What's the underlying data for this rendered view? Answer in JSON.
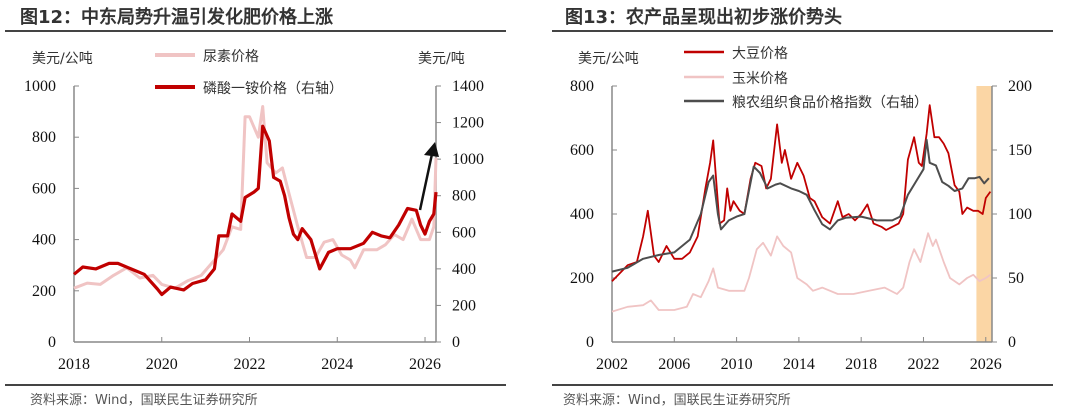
{
  "chart_data": [
    {
      "type": "line",
      "title": "图12：中东局势升温引发化肥价格上涨",
      "source": "资料来源：Wind，国联民生证券研究所",
      "ylabel": "美元/公吨",
      "ylabel_right": "美元/吨",
      "xlim": [
        2018,
        2026.25
      ],
      "ylim": [
        0,
        1000
      ],
      "ylim_right": [
        0,
        1400
      ],
      "xticks": [
        "2018",
        "2020",
        "2022",
        "2024",
        "2026"
      ],
      "yticks": [
        "0",
        "200",
        "400",
        "600",
        "800",
        "1000"
      ],
      "yticks_right": [
        "0",
        "200",
        "400",
        "600",
        "800",
        "1000",
        "1200",
        "1400"
      ],
      "grid": false,
      "legend": "top-center",
      "annotation": "upward-arrow",
      "series": [
        {
          "name": "尿素价格",
          "axis": "left",
          "color": "#f0c4c4",
          "points": [
            [
              2018.0,
              210
            ],
            [
              2018.3,
              230
            ],
            [
              2018.6,
              225
            ],
            [
              2018.9,
              260
            ],
            [
              2019.2,
              290
            ],
            [
              2019.5,
              250
            ],
            [
              2019.8,
              260
            ],
            [
              2020.0,
              225
            ],
            [
              2020.3,
              210
            ],
            [
              2020.6,
              240
            ],
            [
              2020.9,
              260
            ],
            [
              2021.2,
              320
            ],
            [
              2021.4,
              360
            ],
            [
              2021.6,
              450
            ],
            [
              2021.8,
              440
            ],
            [
              2021.9,
              880
            ],
            [
              2022.0,
              880
            ],
            [
              2022.2,
              800
            ],
            [
              2022.3,
              920
            ],
            [
              2022.4,
              700
            ],
            [
              2022.6,
              660
            ],
            [
              2022.75,
              680
            ],
            [
              2022.9,
              580
            ],
            [
              2023.1,
              450
            ],
            [
              2023.3,
              330
            ],
            [
              2023.5,
              330
            ],
            [
              2023.7,
              390
            ],
            [
              2023.9,
              400
            ],
            [
              2024.1,
              340
            ],
            [
              2024.3,
              320
            ],
            [
              2024.4,
              290
            ],
            [
              2024.6,
              360
            ],
            [
              2024.9,
              360
            ],
            [
              2025.1,
              380
            ],
            [
              2025.3,
              420
            ],
            [
              2025.5,
              400
            ],
            [
              2025.7,
              480
            ],
            [
              2025.9,
              400
            ],
            [
              2026.1,
              400
            ],
            [
              2026.2,
              450
            ],
            [
              2026.25,
              720
            ]
          ]
        },
        {
          "name": "磷酸一铵价格（右轴）",
          "axis": "right",
          "color": "#c00000",
          "points": [
            [
              2018.0,
              370
            ],
            [
              2018.2,
              410
            ],
            [
              2018.5,
              400
            ],
            [
              2018.8,
              430
            ],
            [
              2019.0,
              430
            ],
            [
              2019.3,
              400
            ],
            [
              2019.6,
              370
            ],
            [
              2019.9,
              290
            ],
            [
              2020.0,
              260
            ],
            [
              2020.2,
              300
            ],
            [
              2020.5,
              285
            ],
            [
              2020.7,
              320
            ],
            [
              2021.0,
              340
            ],
            [
              2021.2,
              400
            ],
            [
              2021.3,
              580
            ],
            [
              2021.5,
              580
            ],
            [
              2021.6,
              700
            ],
            [
              2021.8,
              660
            ],
            [
              2021.9,
              790
            ],
            [
              2022.1,
              820
            ],
            [
              2022.2,
              840
            ],
            [
              2022.3,
              1180
            ],
            [
              2022.45,
              1100
            ],
            [
              2022.55,
              900
            ],
            [
              2022.7,
              880
            ],
            [
              2022.8,
              800
            ],
            [
              2022.9,
              680
            ],
            [
              2023.0,
              590
            ],
            [
              2023.1,
              560
            ],
            [
              2023.2,
              620
            ],
            [
              2023.4,
              560
            ],
            [
              2023.6,
              400
            ],
            [
              2023.8,
              490
            ],
            [
              2024.0,
              510
            ],
            [
              2024.3,
              510
            ],
            [
              2024.6,
              540
            ],
            [
              2024.8,
              600
            ],
            [
              2025.0,
              580
            ],
            [
              2025.2,
              570
            ],
            [
              2025.4,
              640
            ],
            [
              2025.6,
              730
            ],
            [
              2025.8,
              720
            ],
            [
              2025.9,
              640
            ],
            [
              2026.0,
              590
            ],
            [
              2026.1,
              660
            ],
            [
              2026.2,
              700
            ],
            [
              2026.25,
              820
            ]
          ]
        }
      ]
    },
    {
      "type": "line",
      "title": "图13：农产品呈现出初步涨价势头",
      "source": "资料来源：Wind，国联民生证券研究所",
      "ylabel": "美元/公吨",
      "xlim": [
        2002,
        2026.4
      ],
      "ylim": [
        0,
        800
      ],
      "ylim_right": [
        0,
        200
      ],
      "xticks": [
        "2002",
        "2006",
        "2010",
        "2014",
        "2018",
        "2022",
        "2026"
      ],
      "yticks": [
        "0",
        "200",
        "400",
        "600",
        "800"
      ],
      "yticks_right": [
        "0",
        "50",
        "100",
        "150",
        "200"
      ],
      "grid": false,
      "legend": "top-center",
      "highlight_range": [
        2025.4,
        2026.4
      ],
      "highlight_color": "#fbd29b",
      "series": [
        {
          "name": "大豆价格",
          "axis": "left",
          "color": "#c00000",
          "points": [
            [
              2002,
              190
            ],
            [
              2003,
              240
            ],
            [
              2003.6,
              250
            ],
            [
              2004.0,
              330
            ],
            [
              2004.3,
              410
            ],
            [
              2004.7,
              270
            ],
            [
              2005,
              250
            ],
            [
              2005.5,
              300
            ],
            [
              2006,
              260
            ],
            [
              2006.5,
              260
            ],
            [
              2007,
              280
            ],
            [
              2007.5,
              330
            ],
            [
              2008,
              480
            ],
            [
              2008.3,
              560
            ],
            [
              2008.5,
              630
            ],
            [
              2008.7,
              500
            ],
            [
              2008.9,
              370
            ],
            [
              2009.2,
              380
            ],
            [
              2009.4,
              480
            ],
            [
              2009.6,
              410
            ],
            [
              2009.8,
              440
            ],
            [
              2010.2,
              410
            ],
            [
              2010.5,
              400
            ],
            [
              2010.9,
              510
            ],
            [
              2011.2,
              560
            ],
            [
              2011.6,
              550
            ],
            [
              2011.9,
              480
            ],
            [
              2012.2,
              510
            ],
            [
              2012.6,
              680
            ],
            [
              2012.9,
              560
            ],
            [
              2013.1,
              600
            ],
            [
              2013.5,
              510
            ],
            [
              2013.9,
              560
            ],
            [
              2014.3,
              520
            ],
            [
              2014.7,
              450
            ],
            [
              2015,
              440
            ],
            [
              2015.5,
              390
            ],
            [
              2016,
              370
            ],
            [
              2016.5,
              440
            ],
            [
              2016.8,
              390
            ],
            [
              2017.2,
              400
            ],
            [
              2017.6,
              380
            ],
            [
              2018,
              400
            ],
            [
              2018.4,
              430
            ],
            [
              2018.8,
              370
            ],
            [
              2019.3,
              360
            ],
            [
              2019.6,
              350
            ],
            [
              2020,
              360
            ],
            [
              2020.4,
              370
            ],
            [
              2020.7,
              400
            ],
            [
              2021.0,
              570
            ],
            [
              2021.4,
              640
            ],
            [
              2021.7,
              560
            ],
            [
              2021.9,
              550
            ],
            [
              2022.2,
              650
            ],
            [
              2022.4,
              740
            ],
            [
              2022.7,
              640
            ],
            [
              2023.0,
              640
            ],
            [
              2023.3,
              620
            ],
            [
              2023.6,
              590
            ],
            [
              2024.0,
              490
            ],
            [
              2024.3,
              470
            ],
            [
              2024.5,
              400
            ],
            [
              2024.8,
              420
            ],
            [
              2025.2,
              410
            ],
            [
              2025.5,
              410
            ],
            [
              2025.8,
              400
            ],
            [
              2026.0,
              450
            ],
            [
              2026.3,
              470
            ]
          ]
        },
        {
          "name": "玉米价格",
          "axis": "left",
          "color": "#f0c4c4",
          "points": [
            [
              2002,
              95
            ],
            [
              2003,
              110
            ],
            [
              2004,
              115
            ],
            [
              2004.5,
              130
            ],
            [
              2005,
              100
            ],
            [
              2006,
              100
            ],
            [
              2006.8,
              110
            ],
            [
              2007.2,
              150
            ],
            [
              2007.7,
              140
            ],
            [
              2008.2,
              190
            ],
            [
              2008.5,
              230
            ],
            [
              2008.8,
              170
            ],
            [
              2009.5,
              160
            ],
            [
              2010.5,
              160
            ],
            [
              2010.8,
              200
            ],
            [
              2011.3,
              290
            ],
            [
              2011.7,
              310
            ],
            [
              2012.2,
              270
            ],
            [
              2012.6,
              330
            ],
            [
              2013,
              300
            ],
            [
              2013.5,
              280
            ],
            [
              2013.9,
              200
            ],
            [
              2014.5,
              180
            ],
            [
              2014.9,
              160
            ],
            [
              2015.5,
              170
            ],
            [
              2016.5,
              150
            ],
            [
              2017.5,
              150
            ],
            [
              2018.5,
              160
            ],
            [
              2019.5,
              170
            ],
            [
              2020.3,
              150
            ],
            [
              2020.7,
              170
            ],
            [
              2021.1,
              250
            ],
            [
              2021.4,
              290
            ],
            [
              2021.8,
              250
            ],
            [
              2022.3,
              340
            ],
            [
              2022.6,
              300
            ],
            [
              2022.8,
              320
            ],
            [
              2023.3,
              250
            ],
            [
              2023.7,
              200
            ],
            [
              2024.3,
              180
            ],
            [
              2024.8,
              200
            ],
            [
              2025.2,
              210
            ],
            [
              2025.6,
              190
            ],
            [
              2026.0,
              200
            ],
            [
              2026.3,
              210
            ]
          ]
        },
        {
          "name": "粮农组织食品价格指数（右轴）",
          "axis": "right",
          "color": "#4d4d4d",
          "points": [
            [
              2002,
              55
            ],
            [
              2003,
              58
            ],
            [
              2004,
              65
            ],
            [
              2005,
              68
            ],
            [
              2006,
              70
            ],
            [
              2007,
              80
            ],
            [
              2007.7,
              100
            ],
            [
              2008.2,
              125
            ],
            [
              2008.5,
              130
            ],
            [
              2008.8,
              100
            ],
            [
              2009,
              88
            ],
            [
              2009.5,
              95
            ],
            [
              2010,
              98
            ],
            [
              2010.5,
              100
            ],
            [
              2011.1,
              137
            ],
            [
              2011.5,
              132
            ],
            [
              2012,
              120
            ],
            [
              2012.5,
              123
            ],
            [
              2012.8,
              124
            ],
            [
              2013.5,
              120
            ],
            [
              2014,
              118
            ],
            [
              2014.5,
              115
            ],
            [
              2015,
              103
            ],
            [
              2015.5,
              92
            ],
            [
              2016,
              88
            ],
            [
              2016.5,
              95
            ],
            [
              2017,
              97
            ],
            [
              2018,
              98
            ],
            [
              2019,
              95
            ],
            [
              2020,
              95
            ],
            [
              2020.5,
              98
            ],
            [
              2021.0,
              115
            ],
            [
              2021.5,
              125
            ],
            [
              2022.0,
              135
            ],
            [
              2022.2,
              158
            ],
            [
              2022.4,
              140
            ],
            [
              2022.8,
              138
            ],
            [
              2023.2,
              125
            ],
            [
              2023.6,
              122
            ],
            [
              2024.0,
              118
            ],
            [
              2024.5,
              120
            ],
            [
              2024.9,
              128
            ],
            [
              2025.3,
              128
            ],
            [
              2025.6,
              129
            ],
            [
              2025.9,
              124
            ],
            [
              2026.2,
              128
            ]
          ]
        }
      ]
    }
  ]
}
